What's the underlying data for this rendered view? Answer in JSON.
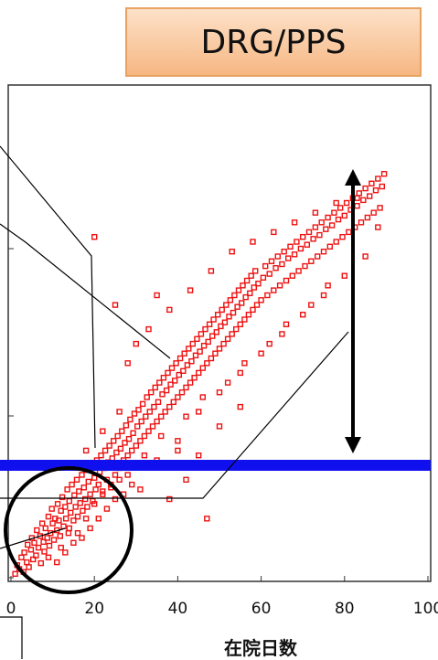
{
  "title": "DRG/PPS",
  "chart_data": {
    "type": "scatter",
    "title": "DRG/PPS",
    "xlabel": "在院日数",
    "ylabel": "",
    "xlim": [
      0,
      100
    ],
    "x_ticks": [
      0,
      20,
      40,
      60,
      80,
      100
    ],
    "x_tick_labels": [
      "0",
      "20",
      "40",
      "60",
      "80",
      "100"
    ],
    "y_ticks": [
      0,
      1,
      2,
      3
    ],
    "grid": false,
    "marker": "open-square",
    "colors": {
      "points": "#ee1111",
      "threshold_line": "#1010ee",
      "annotations": "#000000"
    },
    "series": [
      {
        "values": [
          [
            1,
            0.03
          ],
          [
            1.5,
            0.12
          ],
          [
            2,
            0.08
          ],
          [
            2.5,
            0.2
          ],
          [
            3,
            0.05
          ],
          [
            3.2,
            0.25
          ],
          [
            3.8,
            0.15
          ],
          [
            4,
            0.33
          ],
          [
            4.3,
            0.1
          ],
          [
            4.8,
            0.28
          ],
          [
            5,
            0.4
          ],
          [
            5.3,
            0.18
          ],
          [
            5.6,
            0.35
          ],
          [
            6,
            0.22
          ],
          [
            6.2,
            0.48
          ],
          [
            6.6,
            0.3
          ],
          [
            7,
            0.42
          ],
          [
            7.2,
            0.14
          ],
          [
            7.5,
            0.55
          ],
          [
            7.8,
            0.36
          ],
          [
            8,
            0.26
          ],
          [
            8.3,
            0.5
          ],
          [
            8.7,
            0.4
          ],
          [
            9,
            0.62
          ],
          [
            9.2,
            0.32
          ],
          [
            9.5,
            0.45
          ],
          [
            9.8,
            0.7
          ],
          [
            10,
            0.55
          ],
          [
            10.3,
            0.38
          ],
          [
            10.6,
            0.6
          ],
          [
            11,
            0.48
          ],
          [
            11.2,
            0.75
          ],
          [
            11.5,
            0.58
          ],
          [
            11.8,
            0.42
          ],
          [
            12,
            0.68
          ],
          [
            12.3,
            0.82
          ],
          [
            12.6,
            0.52
          ],
          [
            13,
            0.72
          ],
          [
            13.2,
            0.6
          ],
          [
            13.5,
            0.9
          ],
          [
            13.8,
            0.45
          ],
          [
            14,
            0.78
          ],
          [
            14.3,
            0.66
          ],
          [
            14.6,
            0.95
          ],
          [
            15,
            0.58
          ],
          [
            15.2,
            0.84
          ],
          [
            15.5,
            0.72
          ],
          [
            15.8,
            1.0
          ],
          [
            16,
            0.62
          ],
          [
            16.3,
            0.88
          ],
          [
            16.6,
            0.76
          ],
          [
            17,
            1.05
          ],
          [
            17.2,
            0.68
          ],
          [
            17.5,
            0.92
          ],
          [
            17.8,
            0.8
          ],
          [
            18,
            1.1
          ],
          [
            18.3,
            0.72
          ],
          [
            18.6,
            0.98
          ],
          [
            19,
            0.85
          ],
          [
            19.3,
            1.15
          ],
          [
            19.6,
            0.78
          ],
          [
            20,
            1.02
          ],
          [
            20.3,
            0.9
          ],
          [
            20.6,
            1.2
          ],
          [
            21,
            0.95
          ],
          [
            21.3,
            1.08
          ],
          [
            21.6,
            1.25
          ],
          [
            22,
            0.88
          ],
          [
            22.3,
            1.12
          ],
          [
            22.6,
            1.3
          ],
          [
            23,
            1.0
          ],
          [
            23.3,
            1.18
          ],
          [
            23.6,
            1.35
          ],
          [
            24,
            0.92
          ],
          [
            24.3,
            1.22
          ],
          [
            24.6,
            1.4
          ],
          [
            25,
            1.05
          ],
          [
            25.3,
            1.28
          ],
          [
            25.6,
            1.45
          ],
          [
            26,
            1.12
          ],
          [
            26.3,
            1.32
          ],
          [
            26.6,
            1.5
          ],
          [
            27,
            1.2
          ],
          [
            27.3,
            1.38
          ],
          [
            27.6,
            1.56
          ],
          [
            28,
            1.25
          ],
          [
            28.3,
            1.42
          ],
          [
            28.6,
            1.62
          ],
          [
            29,
            1.3
          ],
          [
            29.3,
            1.48
          ],
          [
            29.6,
            1.68
          ],
          [
            30,
            1.35
          ],
          [
            30.3,
            1.55
          ],
          [
            30.6,
            1.72
          ],
          [
            31,
            1.4
          ],
          [
            31.3,
            1.6
          ],
          [
            31.6,
            1.78
          ],
          [
            32,
            1.45
          ],
          [
            32.3,
            1.65
          ],
          [
            32.6,
            1.85
          ],
          [
            33,
            1.5
          ],
          [
            33.3,
            1.7
          ],
          [
            33.6,
            1.9
          ],
          [
            34,
            1.55
          ],
          [
            34.3,
            1.75
          ],
          [
            34.6,
            1.95
          ],
          [
            35,
            1.6
          ],
          [
            35.3,
            1.8
          ],
          [
            35.6,
            2.0
          ],
          [
            36,
            1.65
          ],
          [
            36.3,
            1.88
          ],
          [
            36.6,
            2.05
          ],
          [
            37,
            1.7
          ],
          [
            37.3,
            1.92
          ],
          [
            37.6,
            2.1
          ],
          [
            38,
            1.75
          ],
          [
            38.3,
            1.98
          ],
          [
            38.6,
            2.15
          ],
          [
            39,
            1.8
          ],
          [
            39.3,
            2.02
          ],
          [
            39.6,
            2.2
          ],
          [
            40,
            1.85
          ],
          [
            40.3,
            2.08
          ],
          [
            40.6,
            2.25
          ],
          [
            41,
            1.9
          ],
          [
            41.3,
            2.12
          ],
          [
            41.6,
            2.3
          ],
          [
            42,
            1.95
          ],
          [
            42.3,
            2.18
          ],
          [
            42.6,
            2.35
          ],
          [
            43,
            2.0
          ],
          [
            43.3,
            2.22
          ],
          [
            43.6,
            2.4
          ],
          [
            44,
            2.05
          ],
          [
            44.3,
            2.28
          ],
          [
            44.6,
            2.45
          ],
          [
            45,
            2.1
          ],
          [
            45.3,
            2.32
          ],
          [
            45.6,
            2.5
          ],
          [
            46,
            2.15
          ],
          [
            46.3,
            2.38
          ],
          [
            46.6,
            2.55
          ],
          [
            47,
            2.2
          ],
          [
            47.3,
            2.42
          ],
          [
            47.6,
            2.6
          ],
          [
            48,
            2.25
          ],
          [
            48.3,
            2.48
          ],
          [
            48.6,
            2.65
          ],
          [
            49,
            2.3
          ],
          [
            49.3,
            2.52
          ],
          [
            49.6,
            2.7
          ],
          [
            50,
            2.35
          ],
          [
            50.3,
            2.58
          ],
          [
            50.6,
            2.75
          ],
          [
            51,
            2.4
          ],
          [
            51.3,
            2.62
          ],
          [
            51.6,
            2.8
          ],
          [
            52,
            2.45
          ],
          [
            52.3,
            2.68
          ],
          [
            52.6,
            2.85
          ],
          [
            53,
            2.5
          ],
          [
            53.3,
            2.72
          ],
          [
            53.6,
            2.9
          ],
          [
            54,
            2.55
          ],
          [
            54.3,
            2.78
          ],
          [
            54.6,
            2.95
          ],
          [
            55,
            2.6
          ],
          [
            55.3,
            2.82
          ],
          [
            55.6,
            3.0
          ],
          [
            56,
            2.65
          ],
          [
            56.3,
            2.88
          ],
          [
            56.6,
            3.05
          ],
          [
            57,
            2.7
          ],
          [
            57.3,
            2.92
          ],
          [
            57.6,
            3.1
          ],
          [
            58,
            2.75
          ],
          [
            58.3,
            2.98
          ],
          [
            58.6,
            3.15
          ],
          [
            59,
            2.8
          ],
          [
            59.3,
            3.02
          ],
          [
            60,
            2.85
          ],
          [
            60.5,
            3.08
          ],
          [
            61,
            3.2
          ],
          [
            61.5,
            2.9
          ],
          [
            62,
            3.12
          ],
          [
            62.5,
            3.25
          ],
          [
            63,
            2.95
          ],
          [
            63.5,
            3.18
          ],
          [
            64,
            3.3
          ],
          [
            64.5,
            3.0
          ],
          [
            65,
            3.22
          ],
          [
            65.5,
            3.35
          ],
          [
            66,
            3.05
          ],
          [
            66.5,
            3.28
          ],
          [
            67,
            3.4
          ],
          [
            67.5,
            3.1
          ],
          [
            68,
            3.32
          ],
          [
            68.5,
            3.45
          ],
          [
            69,
            3.15
          ],
          [
            69.5,
            3.38
          ],
          [
            70,
            3.5
          ],
          [
            70.5,
            3.2
          ],
          [
            71,
            3.42
          ],
          [
            71.5,
            3.55
          ],
          [
            72,
            3.25
          ],
          [
            72.5,
            3.48
          ],
          [
            73,
            3.6
          ],
          [
            73.5,
            3.3
          ],
          [
            74,
            3.52
          ],
          [
            74.5,
            3.65
          ],
          [
            75,
            3.35
          ],
          [
            75.5,
            3.58
          ],
          [
            76,
            3.7
          ],
          [
            76.5,
            3.4
          ],
          [
            77,
            3.62
          ],
          [
            77.5,
            3.75
          ],
          [
            78,
            3.45
          ],
          [
            78.5,
            3.68
          ],
          [
            79,
            3.8
          ],
          [
            79.5,
            3.5
          ],
          [
            80,
            3.72
          ],
          [
            80.5,
            3.85
          ],
          [
            81,
            3.55
          ],
          [
            81.5,
            3.78
          ],
          [
            82,
            3.9
          ],
          [
            82.5,
            3.6
          ],
          [
            83,
            3.82
          ],
          [
            83.5,
            3.95
          ],
          [
            84,
            3.65
          ],
          [
            84.5,
            3.88
          ],
          [
            85,
            4.0
          ],
          [
            85.5,
            3.7
          ],
          [
            86,
            3.92
          ],
          [
            86.5,
            4.05
          ],
          [
            87,
            3.75
          ],
          [
            87.5,
            3.98
          ],
          [
            88,
            4.1
          ],
          [
            88.5,
            3.8
          ],
          [
            89,
            4.02
          ],
          [
            89.5,
            4.15
          ],
          [
            20,
            3.5
          ],
          [
            25,
            2.8
          ],
          [
            30,
            2.4
          ],
          [
            35,
            2.9
          ],
          [
            40,
            1.4
          ],
          [
            45,
            1.7
          ],
          [
            50,
            1.9
          ],
          [
            55,
            2.1
          ],
          [
            60,
            2.3
          ],
          [
            65,
            2.5
          ],
          [
            70,
            2.7
          ],
          [
            75,
            2.9
          ],
          [
            80,
            3.1
          ],
          [
            85,
            3.3
          ],
          [
            28,
            2.2
          ],
          [
            33,
            2.55
          ],
          [
            38,
            2.75
          ],
          [
            43,
            2.95
          ],
          [
            48,
            3.15
          ],
          [
            53,
            3.35
          ],
          [
            58,
            3.45
          ],
          [
            63,
            3.55
          ],
          [
            68,
            3.65
          ],
          [
            73,
            3.75
          ],
          [
            78,
            3.85
          ],
          [
            83,
            3.9
          ],
          [
            88,
            3.6
          ],
          [
            18,
            1.3
          ],
          [
            22,
            1.5
          ],
          [
            26,
            1.7
          ],
          [
            32,
            1.25
          ],
          [
            36,
            1.45
          ],
          [
            42,
            1.65
          ],
          [
            46,
            1.85
          ],
          [
            52,
            2.0
          ],
          [
            56,
            2.2
          ],
          [
            62,
            2.4
          ],
          [
            66,
            2.6
          ],
          [
            72,
            2.8
          ],
          [
            76,
            3.0
          ],
          [
            12,
            0.3
          ],
          [
            14,
            0.5
          ],
          [
            16,
            0.45
          ],
          [
            18,
            0.6
          ],
          [
            20,
            0.75
          ],
          [
            22,
            0.85
          ],
          [
            24,
            0.95
          ],
          [
            26,
            1.0
          ],
          [
            28,
            1.05
          ],
          [
            30,
            1.15
          ],
          [
            35,
            1.2
          ],
          [
            40,
            1.3
          ],
          [
            45,
            1.25
          ],
          [
            50,
            1.55
          ],
          [
            55,
            1.75
          ],
          [
            47,
            0.6
          ],
          [
            38,
            0.8
          ],
          [
            42,
            1.0
          ],
          [
            31,
            0.9
          ],
          [
            27,
            0.85
          ],
          [
            9,
            0.2
          ],
          [
            11,
            0.15
          ],
          [
            13,
            0.25
          ],
          [
            15,
            0.35
          ],
          [
            17,
            0.4
          ],
          [
            19,
            0.5
          ],
          [
            21,
            0.6
          ],
          [
            23,
            0.7
          ],
          [
            25,
            0.8
          ],
          [
            29,
            0.95
          ]
        ]
      }
    ]
  }
}
